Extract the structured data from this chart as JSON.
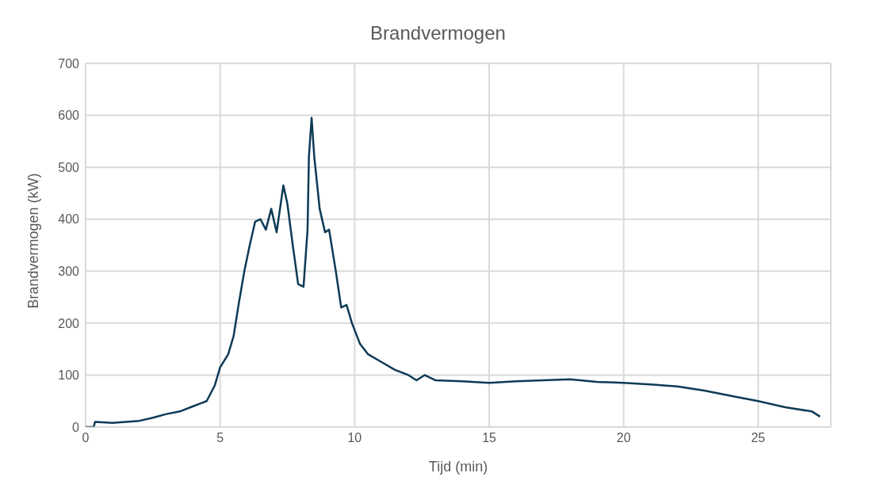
{
  "chart_data": {
    "type": "line",
    "title": "Brandvermogen",
    "xlabel": "Tijd (min)",
    "ylabel": "Brandvermogen (kW)",
    "x": [
      0,
      0.3,
      0.35,
      1,
      2,
      2.5,
      3,
      3.5,
      4,
      4.5,
      4.8,
      5,
      5.3,
      5.5,
      5.7,
      5.9,
      6.1,
      6.3,
      6.5,
      6.7,
      6.9,
      7.1,
      7.35,
      7.5,
      7.7,
      7.9,
      8.1,
      8.25,
      8.3,
      8.4,
      8.5,
      8.7,
      8.9,
      9.05,
      9.3,
      9.5,
      9.7,
      9.9,
      10.2,
      10.5,
      11,
      11.5,
      12,
      12.3,
      12.6,
      13,
      14,
      15,
      16,
      17,
      18,
      19,
      20,
      21,
      22,
      23,
      24,
      25,
      26,
      27,
      27.3
    ],
    "series": [
      {
        "color": "#0d3a56",
        "values": [
          0,
          0,
          10,
          8,
          12,
          18,
          25,
          30,
          40,
          50,
          80,
          115,
          140,
          175,
          240,
          300,
          350,
          395,
          400,
          380,
          420,
          375,
          465,
          430,
          350,
          275,
          270,
          380,
          520,
          595,
          520,
          420,
          375,
          380,
          300,
          230,
          235,
          200,
          160,
          140,
          125,
          110,
          100,
          90,
          100,
          90,
          88,
          85,
          88,
          90,
          92,
          87,
          85,
          82,
          78,
          70,
          60,
          50,
          38,
          30,
          20
        ]
      }
    ],
    "xlim": [
      0,
      27.7
    ],
    "xticks": [
      0,
      5,
      10,
      15,
      20,
      25
    ],
    "ylim": [
      0,
      700
    ],
    "yticks": [
      0,
      100,
      200,
      300,
      400,
      500,
      600,
      700
    ],
    "grid": true,
    "marker": "none",
    "line_style": "solid",
    "legend": false
  }
}
